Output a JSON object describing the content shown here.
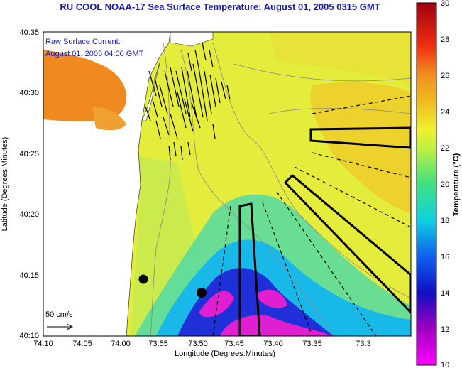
{
  "title": "RU COOL  NOAA-17  Sea Surface Temperature:  August 01, 2005 0315 GMT",
  "annotation": {
    "line1": "Raw Surface Current:",
    "line2": "August 01, 2005 04:00 GMT"
  },
  "scale_label": "50 cm/s",
  "x_axis": {
    "label": "Longitude (Degrees:Minutes)",
    "ticks": [
      "74:10",
      "74:05",
      "74:00",
      "73:55",
      "73:50",
      "73:45",
      "73:40",
      "73:35",
      "73:3"
    ]
  },
  "y_axis": {
    "label": "Latitude (Degrees:Minutes)",
    "ticks": [
      "40:35",
      "40:30",
      "40:25",
      "40:20",
      "40:15",
      "40:10"
    ]
  },
  "colorbar": {
    "label": "Temperature (°C)",
    "ticks": [
      "30",
      "28",
      "26",
      "24",
      "22",
      "20",
      "18",
      "16",
      "14",
      "12",
      "10"
    ],
    "range": [
      10,
      30
    ]
  },
  "colors": {
    "warm": "#f08a20",
    "mid": "#e6ec3a",
    "cool": "#22c8e0",
    "cold": "#1a2ad8",
    "coldest": "#e020d0",
    "land": "#ffffff"
  }
}
